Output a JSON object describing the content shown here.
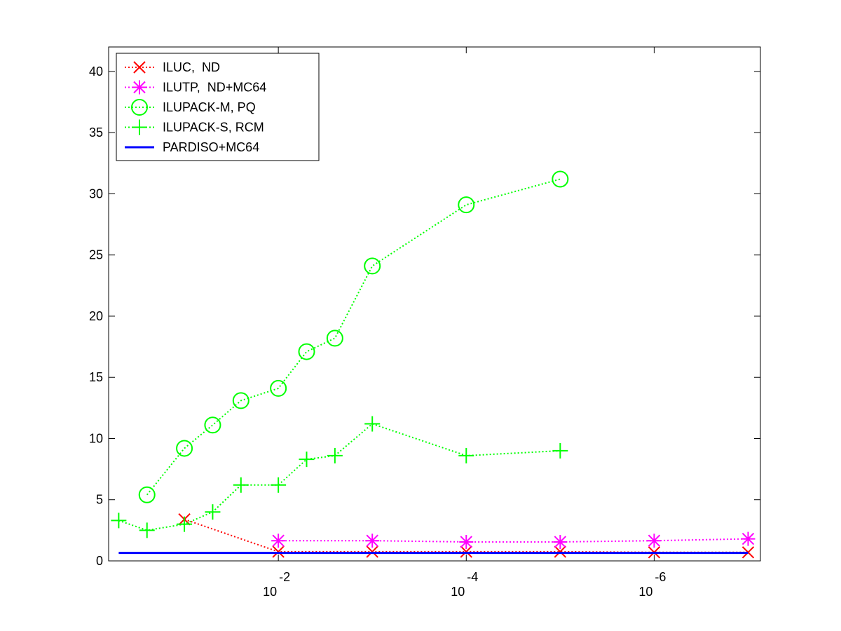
{
  "chart_data": {
    "type": "line",
    "xscale": "log",
    "xreverse": true,
    "xlim": [
      0.64,
      7.4e-08
    ],
    "ylim": [
      0,
      42
    ],
    "xticks": [
      {
        "value": 0.01,
        "label": "10",
        "exponent": "-2"
      },
      {
        "value": 0.0001,
        "label": "10",
        "exponent": "-4"
      },
      {
        "value": 1e-06,
        "label": "10",
        "exponent": "-6"
      }
    ],
    "yticks": [
      0,
      5,
      10,
      15,
      20,
      25,
      30,
      35,
      40
    ],
    "grid": false,
    "legend": "upper left",
    "series": [
      {
        "name": "ILUC,  ND",
        "color": "#ff0000",
        "marker": "x",
        "linestyle": "dotted",
        "x": [
          0.1,
          0.01,
          0.001,
          0.0001,
          1e-05,
          1e-06,
          1e-07
        ],
        "values": [
          3.4,
          0.75,
          0.75,
          0.75,
          0.75,
          0.7,
          0.7
        ]
      },
      {
        "name": "ILUTP,  ND+MC64",
        "color": "#ff00ff",
        "marker": "asterisk",
        "linestyle": "dotted",
        "x": [
          0.01,
          0.001,
          0.0001,
          1e-05,
          1e-06,
          1e-07
        ],
        "values": [
          1.65,
          1.65,
          1.55,
          1.55,
          1.65,
          1.8
        ]
      },
      {
        "name": "ILUPACK-M, PQ",
        "color": "#00ff00",
        "marker": "circle",
        "linestyle": "dotted",
        "x": [
          0.25,
          0.1,
          0.05,
          0.025,
          0.01,
          0.005,
          0.0025,
          0.001,
          0.0001,
          1e-05
        ],
        "values": [
          5.4,
          9.2,
          11.1,
          13.1,
          14.1,
          17.1,
          18.2,
          24.1,
          29.1,
          31.2
        ]
      },
      {
        "name": "ILUPACK-S, RCM",
        "color": "#00ff00",
        "marker": "plus",
        "linestyle": "dotted",
        "x": [
          0.5,
          0.25,
          0.1,
          0.05,
          0.025,
          0.01,
          0.005,
          0.0025,
          0.001,
          0.0001,
          1e-05
        ],
        "values": [
          3.3,
          2.5,
          3.0,
          4.0,
          6.2,
          6.2,
          8.3,
          8.6,
          11.2,
          8.6,
          9.0
        ]
      },
      {
        "name": "PARDISO+MC64",
        "color": "#0000ff",
        "marker": "none",
        "linestyle": "solid",
        "x": [
          0.5,
          1e-07
        ],
        "values": [
          0.65,
          0.65
        ]
      }
    ]
  }
}
